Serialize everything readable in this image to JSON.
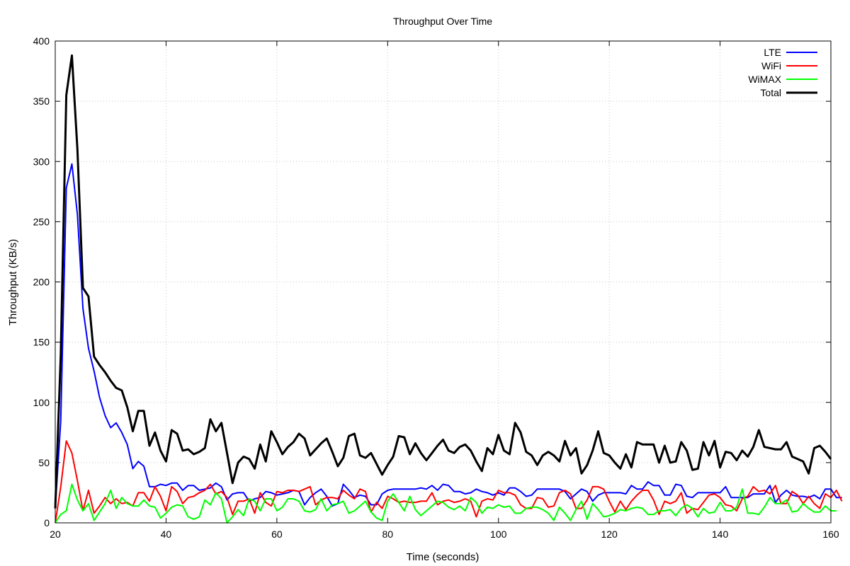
{
  "chart_data": {
    "type": "line",
    "title": "Throughput Over Time",
    "xlabel": "Time (seconds)",
    "ylabel": "Throughput (KB/s)",
    "xlim": [
      20,
      160
    ],
    "ylim": [
      0,
      400
    ],
    "x_ticks": [
      20,
      40,
      60,
      80,
      100,
      120,
      140,
      160
    ],
    "y_ticks": [
      0,
      50,
      100,
      150,
      200,
      250,
      300,
      350,
      400
    ],
    "grid": true,
    "legend_position": "top-right",
    "x_start": 20,
    "x_step": 1,
    "series": [
      {
        "name": "LTE",
        "color": "#0000ff",
        "values": [
          12,
          85,
          278,
          298,
          256,
          178,
          145,
          126,
          104,
          89,
          79,
          83,
          75,
          65,
          45,
          51,
          47,
          30,
          30,
          32,
          31,
          33,
          33,
          27,
          31,
          31,
          27,
          28,
          29,
          33,
          30,
          19,
          24,
          25,
          25,
          18,
          20,
          21,
          26,
          25,
          23,
          24,
          25,
          27,
          26,
          15,
          21,
          25,
          28,
          22,
          14,
          16,
          32,
          27,
          21,
          23,
          22,
          15,
          15,
          24,
          27,
          28,
          28,
          28,
          28,
          28,
          29,
          28,
          31,
          27,
          32,
          31,
          26,
          26,
          24,
          25,
          28,
          26,
          25,
          23,
          25,
          23,
          29,
          29,
          26,
          22,
          23,
          28,
          28,
          28,
          28,
          28,
          26,
          20,
          24,
          28,
          26,
          18,
          23,
          25,
          25,
          25,
          25,
          24,
          31,
          28,
          28,
          34,
          31,
          31,
          23,
          23,
          32,
          31,
          22,
          21,
          25,
          25,
          25,
          25,
          25,
          30,
          21,
          21,
          21,
          21,
          24,
          24,
          24,
          31,
          17,
          23,
          27,
          23,
          22,
          22,
          21,
          23,
          20,
          28,
          28,
          21,
          21
        ]
      },
      {
        "name": "WiFi",
        "color": "#ff0000",
        "values": [
          0,
          30,
          68,
          58,
          35,
          10,
          27,
          8,
          14,
          21,
          16,
          20,
          16,
          17,
          14,
          25,
          25,
          18,
          30,
          22,
          10,
          30,
          26,
          16,
          21,
          22,
          25,
          27,
          32,
          24,
          26,
          21,
          7,
          18,
          18,
          20,
          8,
          25,
          17,
          14,
          26,
          25,
          27,
          27,
          26,
          28,
          30,
          15,
          19,
          21,
          21,
          20,
          27,
          23,
          20,
          28,
          26,
          9,
          17,
          12,
          22,
          20,
          17,
          18,
          17,
          17,
          18,
          18,
          25,
          15,
          18,
          19,
          17,
          18,
          20,
          18,
          5,
          18,
          20,
          19,
          27,
          25,
          25,
          23,
          15,
          12,
          12,
          21,
          20,
          13,
          14,
          25,
          27,
          24,
          12,
          12,
          19,
          30,
          30,
          28,
          18,
          9,
          18,
          11,
          18,
          23,
          27,
          27,
          19,
          7,
          18,
          16,
          18,
          25,
          8,
          12,
          11,
          17,
          23,
          24,
          21,
          15,
          14,
          10,
          20,
          22,
          30,
          26,
          27,
          24,
          31,
          16,
          16,
          26,
          23,
          16,
          22,
          16,
          12,
          24,
          21,
          27,
          18
        ]
      },
      {
        "name": "WiMAX",
        "color": "#00ff00",
        "values": [
          0,
          7,
          10,
          32,
          19,
          10,
          16,
          2,
          9,
          16,
          27,
          12,
          21,
          16,
          14,
          14,
          19,
          14,
          13,
          4,
          8,
          13,
          15,
          14,
          5,
          3,
          5,
          19,
          15,
          25,
          20,
          0,
          5,
          11,
          6,
          20,
          18,
          10,
          20,
          20,
          10,
          13,
          20,
          20,
          18,
          10,
          9,
          11,
          20,
          10,
          15,
          16,
          18,
          8,
          10,
          14,
          18,
          9,
          4,
          2,
          18,
          24,
          17,
          10,
          22,
          11,
          6,
          10,
          14,
          18,
          17,
          13,
          11,
          14,
          10,
          21,
          17,
          8,
          13,
          12,
          15,
          13,
          14,
          8,
          8,
          12,
          13,
          13,
          11,
          8,
          2,
          13,
          8,
          2,
          11,
          18,
          3,
          16,
          11,
          5,
          6,
          8,
          11,
          10,
          12,
          13,
          12,
          7,
          7,
          10,
          10,
          11,
          6,
          12,
          15,
          12,
          5,
          12,
          8,
          9,
          17,
          10,
          10,
          13,
          28,
          8,
          8,
          7,
          13,
          21,
          16,
          16,
          19,
          9,
          10,
          16,
          12,
          9,
          9,
          14,
          10,
          10
        ]
      },
      {
        "name": "Total",
        "color": "#000000",
        "values": [
          12,
          140,
          355,
          388,
          310,
          195,
          188,
          138,
          131,
          125,
          118,
          112,
          110,
          96,
          76,
          93,
          93,
          64,
          75,
          60,
          51,
          77,
          74,
          60,
          61,
          57,
          59,
          62,
          86,
          76,
          83,
          58,
          33,
          50,
          55,
          53,
          45,
          65,
          51,
          76,
          67,
          57,
          63,
          67,
          74,
          70,
          56,
          61,
          66,
          70,
          59,
          47,
          54,
          72,
          74,
          56,
          54,
          58,
          49,
          40,
          48,
          55,
          72,
          71,
          57,
          66,
          58,
          52,
          58,
          64,
          69,
          60,
          58,
          63,
          65,
          60,
          51,
          43,
          62,
          57,
          73,
          60,
          57,
          83,
          75,
          59,
          56,
          48,
          56,
          59,
          56,
          51,
          68,
          56,
          62,
          41,
          48,
          60,
          76,
          58,
          56,
          50,
          45,
          57,
          46,
          67,
          65,
          65,
          65,
          50,
          64,
          50,
          51,
          67,
          60,
          44,
          45,
          67,
          56,
          68,
          46,
          59,
          58,
          52,
          60,
          55,
          63,
          77,
          63,
          62,
          61,
          61,
          67,
          55,
          53,
          51,
          41,
          62,
          64,
          59,
          53
        ]
      }
    ]
  }
}
